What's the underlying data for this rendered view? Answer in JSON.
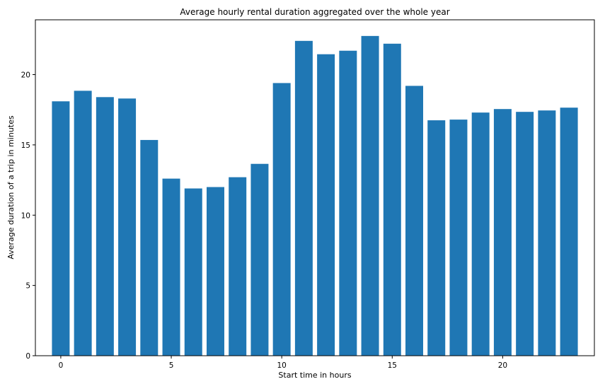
{
  "chart_data": {
    "type": "bar",
    "title": "Average hourly rental duration aggregated over the whole year",
    "xlabel": "Start time in hours",
    "ylabel": "Average duration of a trip in minutes",
    "x": [
      0,
      1,
      2,
      3,
      4,
      5,
      6,
      7,
      8,
      9,
      10,
      11,
      12,
      13,
      14,
      15,
      16,
      17,
      18,
      19,
      20,
      21,
      22,
      23
    ],
    "values": [
      18.1,
      18.85,
      18.4,
      18.3,
      15.35,
      12.6,
      11.9,
      12.0,
      12.7,
      13.65,
      19.4,
      22.4,
      21.45,
      21.7,
      22.75,
      22.2,
      19.2,
      16.75,
      16.8,
      17.3,
      17.55,
      17.35,
      17.45,
      17.65
    ],
    "xlim": [
      -1.15,
      24.15
    ],
    "ylim": [
      0,
      23.9
    ],
    "xticks": [
      0,
      5,
      10,
      15,
      20
    ],
    "yticks": [
      0,
      5,
      10,
      15,
      20
    ],
    "bar_color": "#1f77b4",
    "grid": false,
    "legend": "none"
  }
}
